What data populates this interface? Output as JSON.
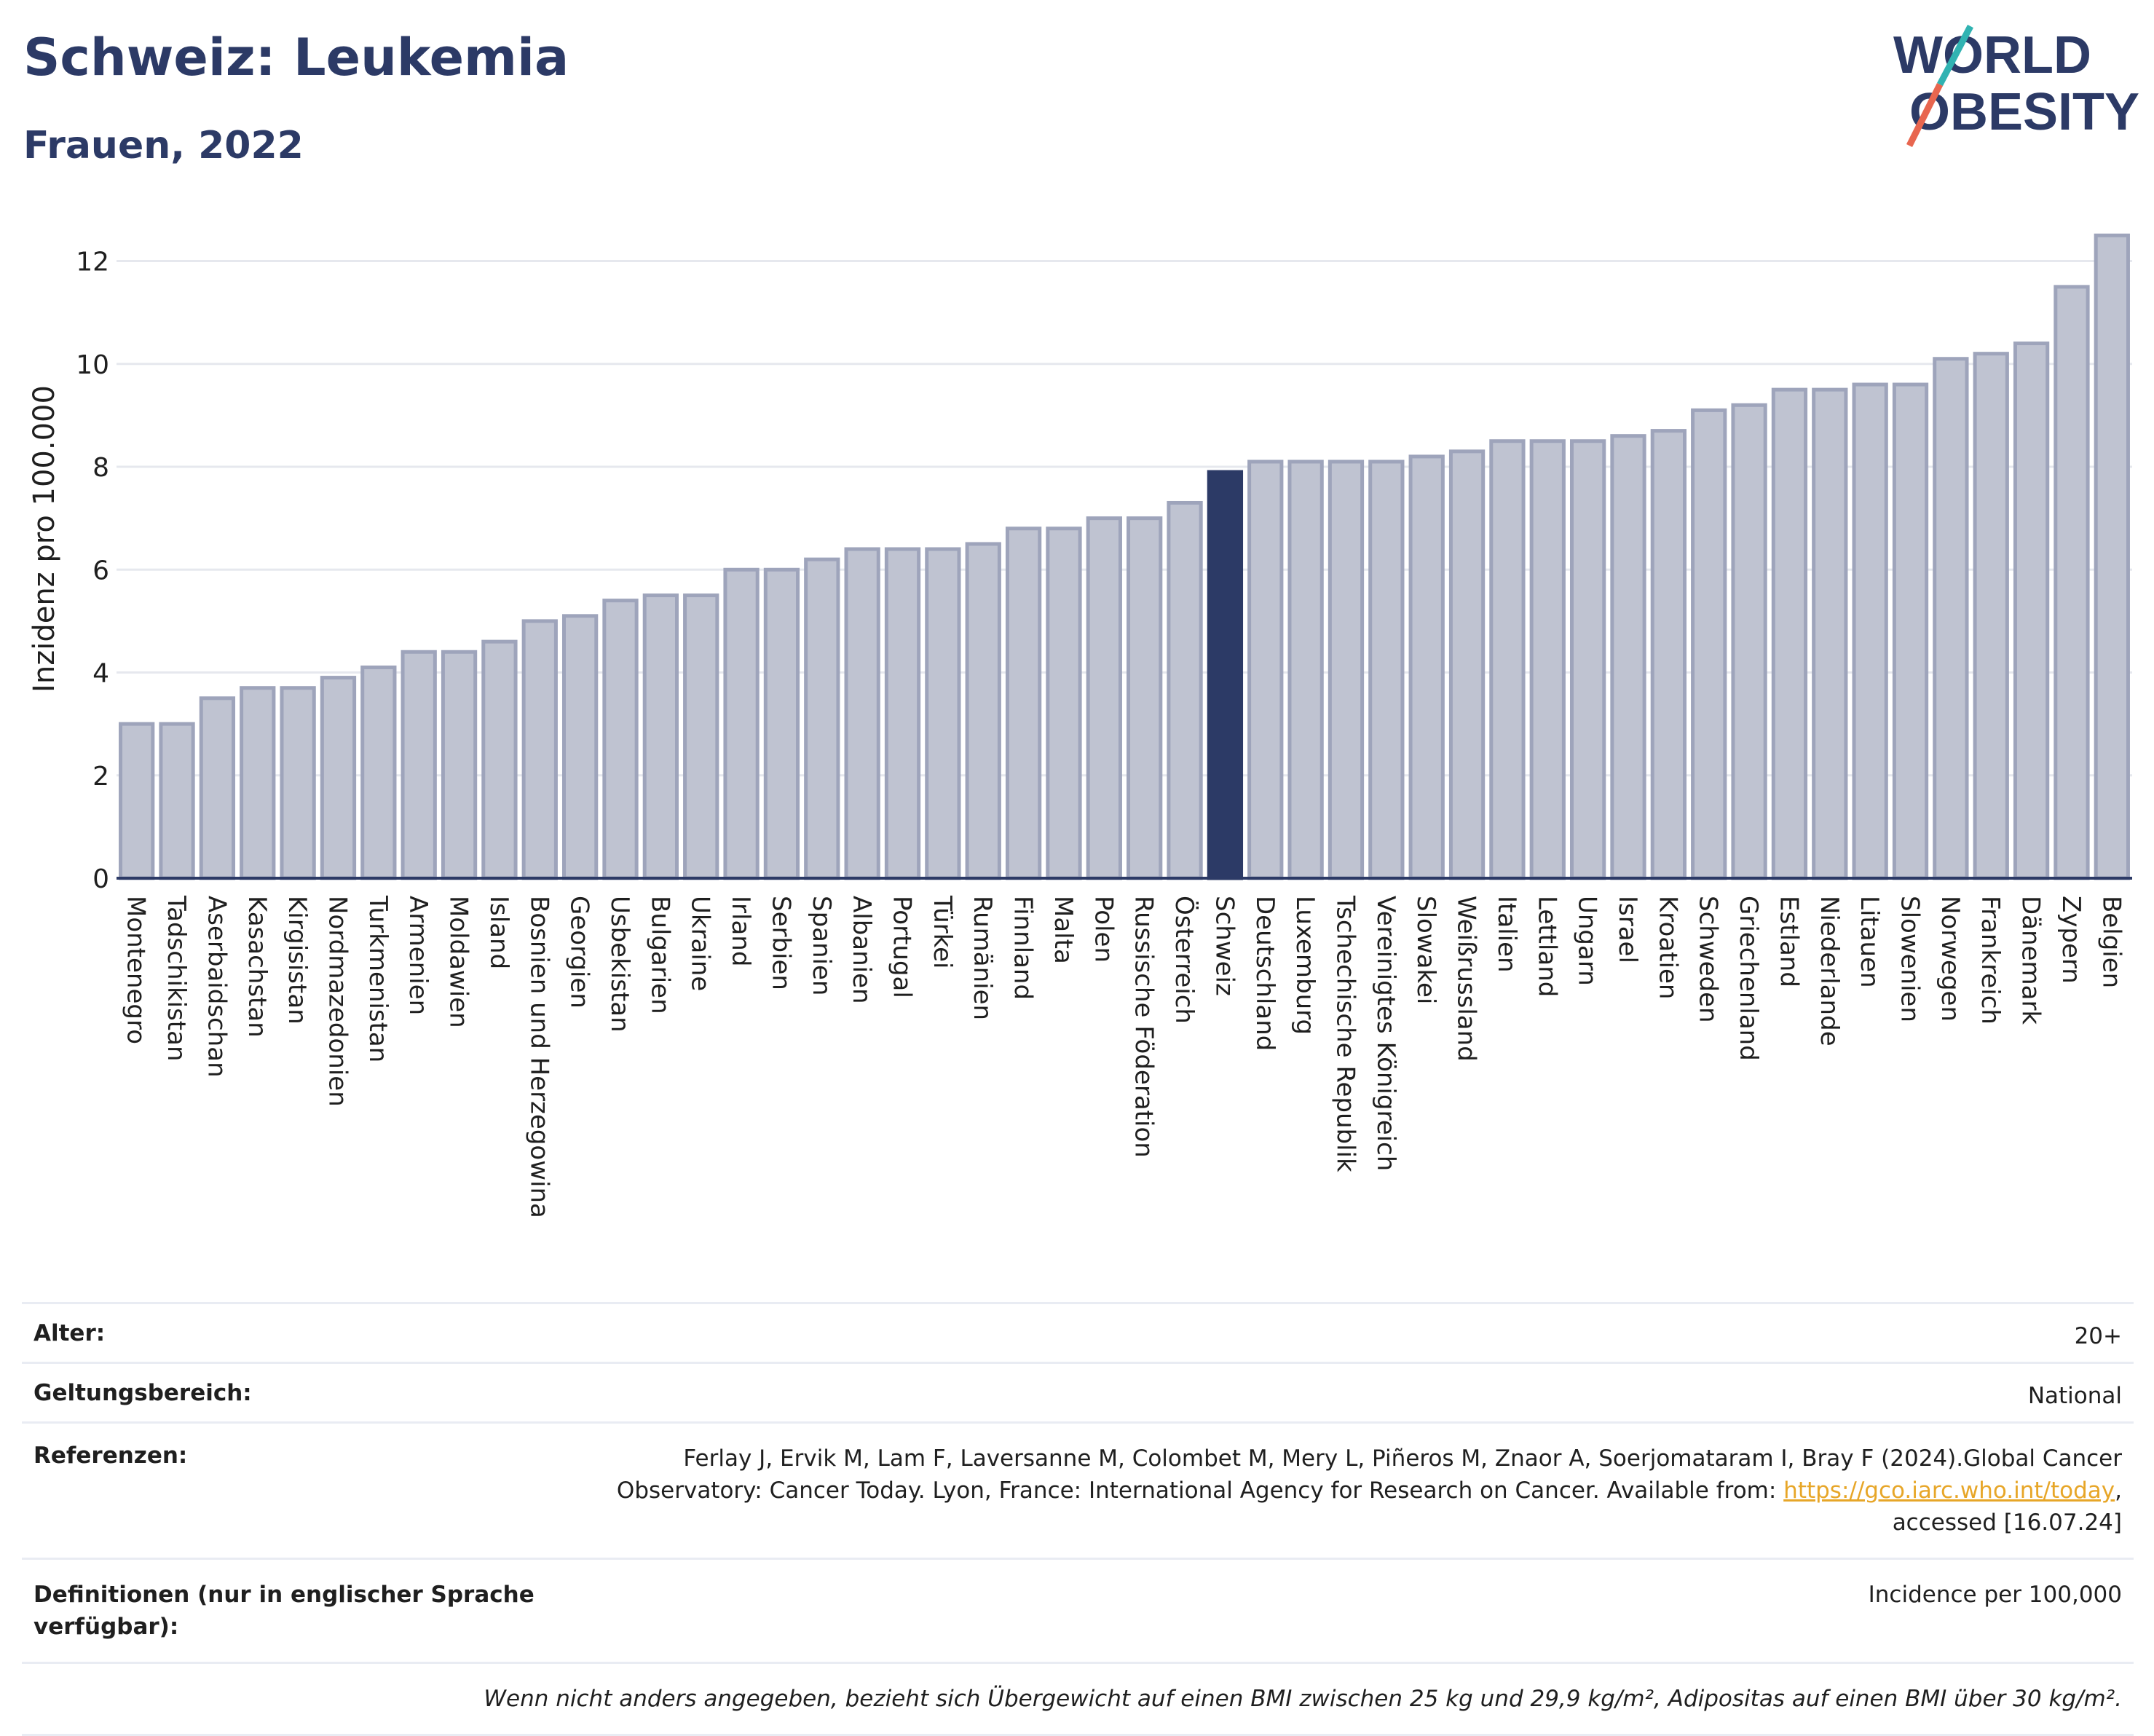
{
  "header": {
    "title": "Schweiz: Leukemia",
    "subtitle": "Frauen, 2022"
  },
  "logo": {
    "line1": "WORLD",
    "line2": "OBESITY"
  },
  "colors": {
    "bar": "#bfc3d1",
    "bar_stroke": "#9ea4bb",
    "highlight": "#2c3a66",
    "grid": "#e6e8ee",
    "axis": "#2c3a66",
    "logo_teal": "#31b3b2",
    "logo_red": "#e8664f"
  },
  "chart_data": {
    "type": "bar",
    "ylabel": "Inzidenz pro 100.000",
    "ylim": [
      0,
      12.9
    ],
    "yticks": [
      0,
      2,
      4,
      6,
      8,
      10,
      12
    ],
    "highlight": "Schweiz",
    "categories": [
      "Montenegro",
      "Tadschikistan",
      "Aserbaidschan",
      "Kasachstan",
      "Kirgisistan",
      "Nordmazedonien",
      "Turkmenistan",
      "Armenien",
      "Moldawien",
      "Island",
      "Bosnien und Herzegowina",
      "Georgien",
      "Usbekistan",
      "Bulgarien",
      "Ukraine",
      "Irland",
      "Serbien",
      "Spanien",
      "Albanien",
      "Portugal",
      "Türkei",
      "Rumänien",
      "Finnland",
      "Malta",
      "Polen",
      "Russische Föderation",
      "Österreich",
      "Schweiz",
      "Deutschland",
      "Luxemburg",
      "Tschechische Republik",
      "Vereinigtes Königreich",
      "Slowakei",
      "Weißrussland",
      "Italien",
      "Lettland",
      "Ungarn",
      "Israel",
      "Kroatien",
      "Schweden",
      "Griechenland",
      "Estland",
      "Niederlande",
      "Litauen",
      "Slowenien",
      "Norwegen",
      "Frankreich",
      "Dänemark",
      "Zypern",
      "Belgien"
    ],
    "values": [
      3.0,
      3.0,
      3.5,
      3.7,
      3.7,
      3.9,
      4.1,
      4.4,
      4.4,
      4.6,
      5.0,
      5.1,
      5.4,
      5.5,
      5.5,
      6.0,
      6.0,
      6.2,
      6.4,
      6.4,
      6.4,
      6.5,
      6.8,
      6.8,
      7.0,
      7.0,
      7.3,
      7.9,
      8.1,
      8.1,
      8.1,
      8.1,
      8.2,
      8.3,
      8.5,
      8.5,
      8.5,
      8.6,
      8.7,
      9.1,
      9.2,
      9.5,
      9.5,
      9.6,
      9.6,
      10.1,
      10.2,
      10.4,
      11.5,
      12.5
    ]
  },
  "info": {
    "age_label": "Alter:",
    "age_value": "20+",
    "scope_label": "Geltungsbereich:",
    "scope_value": "National",
    "ref_label": "Referenzen:",
    "ref_text_1": "Ferlay J, Ervik M, Lam F, Laversanne M, Colombet M, Mery L, Piñeros M, Znaor A, Soerjomataram I, Bray F (2024).Global Cancer",
    "ref_text_2": "Observatory: Cancer Today. Lyon, France: International Agency for Research on Cancer. Available from: ",
    "ref_link": "https://gco.iarc.who.int/today",
    "ref_text_3": ",",
    "ref_text_4": "accessed [16.07.24]",
    "def_label_1": "Definitionen (nur in englischer Sprache",
    "def_label_2": "verfügbar):",
    "def_value": "Incidence per 100,000",
    "note": "Wenn nicht anders angegeben, bezieht sich Übergewicht auf einen BMI zwischen 25 kg und 29,9 kg/m², Adipositas auf einen BMI über 30 kg/m²."
  }
}
